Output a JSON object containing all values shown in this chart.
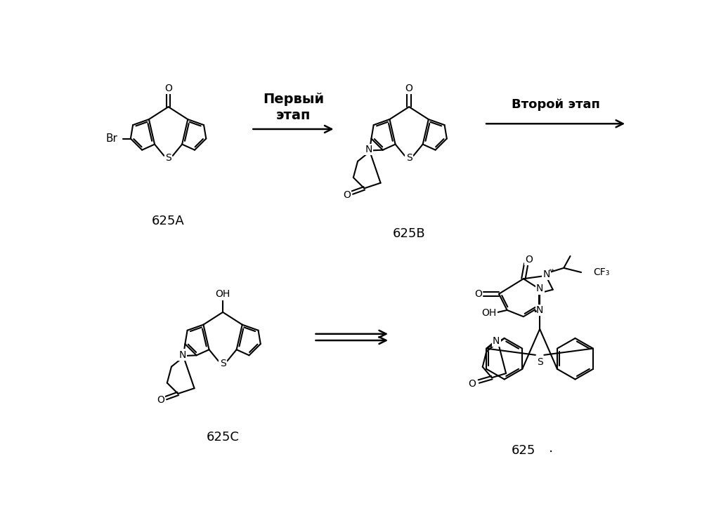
{
  "background_color": "#ffffff",
  "labels": {
    "compound_625A": "625A",
    "compound_625B": "625B",
    "compound_625C": "625C",
    "compound_625": "625",
    "step1_line1": "Первый",
    "step1_line2": "этап",
    "step2": "Второй этап"
  },
  "fig_width": 9.99,
  "fig_height": 7.31
}
